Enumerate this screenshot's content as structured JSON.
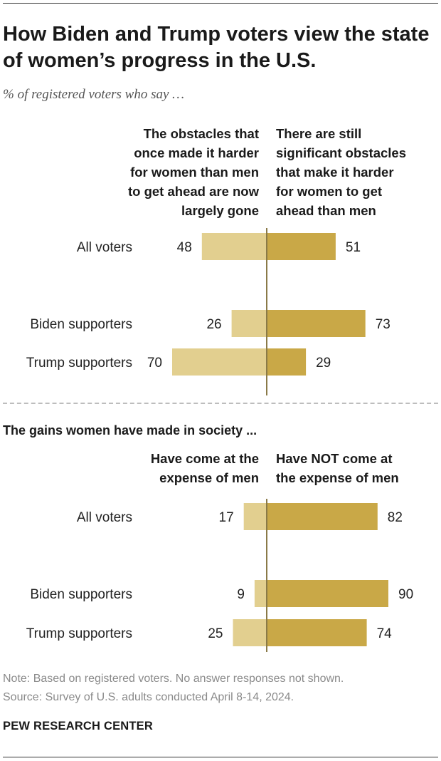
{
  "title": "How Biden and Trump voters view the state of women’s progress in the U.S.",
  "subtitle": "% of registered voters who say …",
  "colors": {
    "left_bar": "#e2cf8f",
    "right_bar": "#c9a847",
    "axis": "#8a7a48",
    "text": "#222222"
  },
  "chart_data": [
    {
      "type": "bar",
      "orientation": "diverging-horizontal",
      "categories": [
        "All voters",
        "Biden supporters",
        "Trump supporters"
      ],
      "series": [
        {
          "name": "The obstacles that once made it harder for women than men to get ahead are now largely gone",
          "values": [
            48,
            26,
            70
          ]
        },
        {
          "name": "There are still significant obstacles that make it harder for women to get ahead than men",
          "values": [
            51,
            73,
            29
          ]
        }
      ],
      "left_header": [
        "The obstacles that",
        "once made it harder",
        "for women than men",
        "to get ahead are now",
        "largely gone"
      ],
      "right_header": [
        "There are still",
        "significant obstacles",
        "that make it harder",
        "for women to get",
        "ahead than men"
      ]
    },
    {
      "type": "bar",
      "orientation": "diverging-horizontal",
      "title": "The gains women have made in society ...",
      "categories": [
        "All voters",
        "Biden supporters",
        "Trump supporters"
      ],
      "series": [
        {
          "name": "Have come at the expense of men",
          "values": [
            17,
            9,
            25
          ]
        },
        {
          "name": "Have NOT come at the expense of men",
          "values": [
            82,
            90,
            74
          ]
        }
      ],
      "left_header": [
        "Have come at the",
        "expense of men"
      ],
      "right_header": [
        "Have NOT come at",
        "the expense of men"
      ]
    }
  ],
  "note": "Note: Based on registered voters. No answer responses not shown.",
  "source": "Source: Survey of U.S. adults conducted April 8-14, 2024.",
  "brand": "PEW RESEARCH CENTER"
}
